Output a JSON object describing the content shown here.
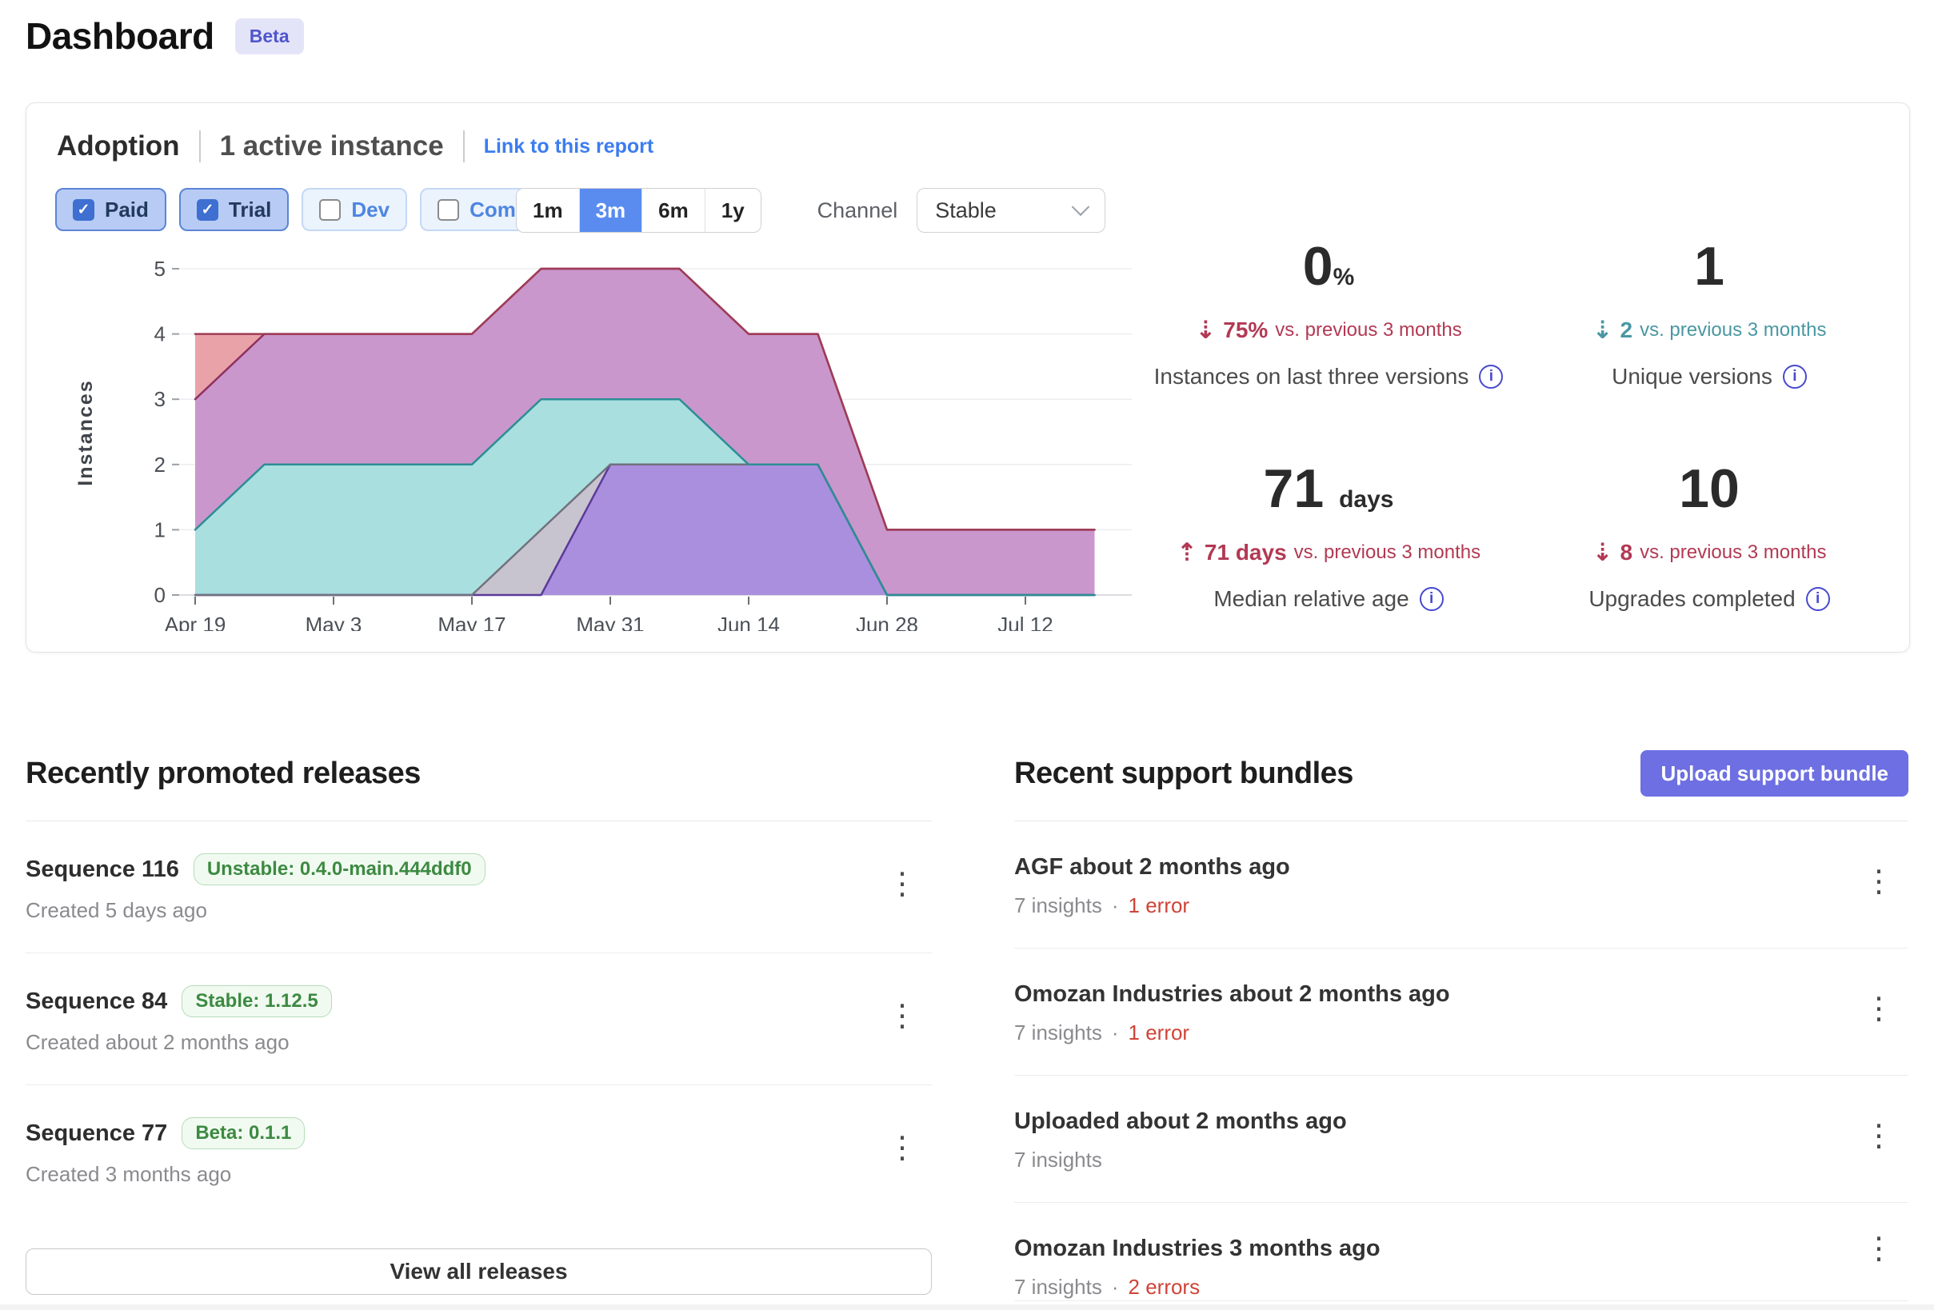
{
  "page": {
    "title": "Dashboard",
    "badge": "Beta"
  },
  "adoption": {
    "title": "Adoption",
    "subtitle": "1 active instance",
    "link": "Link to this report",
    "filters": [
      {
        "label": "Paid",
        "checked": true
      },
      {
        "label": "Trial",
        "checked": true
      },
      {
        "label": "Dev",
        "checked": false
      },
      {
        "label": "Community",
        "checked": false
      }
    ],
    "ranges": [
      {
        "label": "1m",
        "selected": false
      },
      {
        "label": "3m",
        "selected": true
      },
      {
        "label": "6m",
        "selected": false
      },
      {
        "label": "1y",
        "selected": false
      }
    ],
    "channel_label": "Channel",
    "channel_value": "Stable",
    "stats": [
      {
        "value": "0",
        "unit": "%",
        "direction": "down",
        "trend_color": "#b23953",
        "change": "75%",
        "change_suffix": "vs. previous 3 months",
        "label": "Instances on last three versions"
      },
      {
        "value": "1",
        "unit": "",
        "direction": "down",
        "trend_color": "#4a97a3",
        "change": "2",
        "change_suffix": "vs. previous 3 months",
        "label": "Unique versions"
      },
      {
        "value": "71",
        "unit": "days",
        "direction": "up",
        "trend_color": "#b23953",
        "change": "71 days",
        "change_suffix": "vs. previous 3 months",
        "label": "Median relative age"
      },
      {
        "value": "10",
        "unit": "",
        "direction": "down",
        "trend_color": "#b23953",
        "change": "8",
        "change_suffix": "vs. previous 3 months",
        "label": "Upgrades completed"
      }
    ]
  },
  "chart_data": {
    "type": "area",
    "stacked": true,
    "title": "",
    "xlabel": "",
    "ylabel": "Instances",
    "ylim": [
      0,
      5
    ],
    "grid": "horizontal",
    "legend": "none",
    "x": [
      "Apr 19",
      "Apr 26",
      "May 3",
      "May 10",
      "May 17",
      "May 24",
      "May 31",
      "Jun 7",
      "Jun 14",
      "Jun 21",
      "Jun 28",
      "Jul 5",
      "Jul 12",
      "Jul 19"
    ],
    "x_tick_step": 2,
    "series": [
      {
        "name": "series-purple",
        "values": [
          0,
          0,
          0,
          0,
          0,
          0,
          2,
          2,
          2,
          2,
          0,
          0,
          0,
          0
        ],
        "fill": "#ab8fdf",
        "line": "#5b3a9a"
      },
      {
        "name": "series-gray",
        "values": [
          0,
          0,
          0,
          0,
          0,
          1,
          0,
          0,
          0,
          0,
          0,
          0,
          0,
          0
        ],
        "fill": "#c7c4cf",
        "line": "#71717e"
      },
      {
        "name": "series-teal",
        "values": [
          1,
          2,
          2,
          2,
          2,
          2,
          1,
          1,
          0,
          0,
          0,
          0,
          0,
          0
        ],
        "fill": "#a9dfdf",
        "line": "#2c8e95"
      },
      {
        "name": "series-mauve",
        "values": [
          2,
          2,
          2,
          2,
          2,
          2,
          2,
          2,
          2,
          2,
          1,
          1,
          1,
          1
        ],
        "fill": "#ca97cc",
        "line": "#8e3060"
      },
      {
        "name": "series-salmon",
        "values": [
          1,
          0,
          0,
          0,
          0,
          0,
          0,
          0,
          0,
          0,
          0,
          0,
          0,
          0
        ],
        "fill": "#e9a2a8",
        "line": "#9e3c55"
      }
    ],
    "stacked_totals": [
      4,
      4,
      4,
      4,
      4,
      5,
      5,
      5,
      4,
      4,
      1,
      1,
      1,
      1
    ],
    "line_draw_order": [
      "series-purple",
      "series-gray",
      "series-mauve",
      "series-salmon",
      "series-teal"
    ]
  },
  "releases": {
    "heading": "Recently promoted releases",
    "items": [
      {
        "title": "Sequence 116",
        "badge": "Unstable: 0.4.0-main.444ddf0",
        "created": "Created 5 days ago"
      },
      {
        "title": "Sequence 84",
        "badge": "Stable: 1.12.5",
        "created": "Created about 2 months ago"
      },
      {
        "title": "Sequence 77",
        "badge": "Beta: 0.1.1",
        "created": "Created 3 months ago"
      }
    ],
    "view_all": "View all releases"
  },
  "bundles": {
    "heading": "Recent support bundles",
    "upload_button": "Upload support bundle",
    "items": [
      {
        "title": "AGF about 2 months ago",
        "insights": "7 insights",
        "sep": "·",
        "errors": "1 error"
      },
      {
        "title": "Omozan Industries about 2 months ago",
        "insights": "7 insights",
        "sep": "·",
        "errors": "1 error"
      },
      {
        "title": "Uploaded about 2 months ago",
        "insights": "7 insights"
      },
      {
        "title": "Omozan Industries 3 months ago",
        "insights": "7 insights",
        "sep": "·",
        "errors": "2 errors"
      }
    ]
  },
  "colors": {
    "accent_blue": "#5a8cf0",
    "link_blue": "#3c7cf0",
    "indigo_button": "#6d6fe2",
    "negative_red": "#b23953",
    "positive_teal": "#4a97a3",
    "error_red": "#cf4338",
    "badge_green": "#3c8a41",
    "info_icon": "#4749d0"
  }
}
